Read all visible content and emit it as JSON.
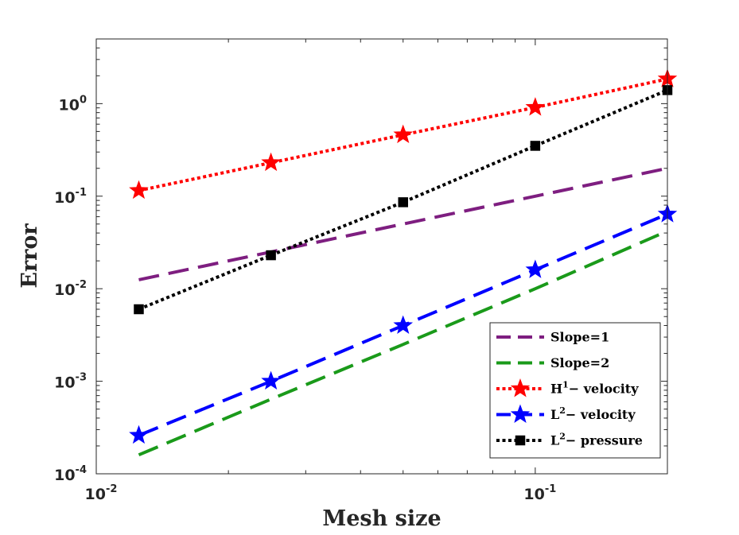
{
  "chart_data": {
    "type": "line",
    "scale": {
      "x": "log",
      "y": "log"
    },
    "xlabel": "Mesh size",
    "ylabel": "Error",
    "xlim": [
      0.01,
      0.2
    ],
    "ylim": [
      0.0001,
      5
    ],
    "x_ticks": [
      {
        "value": 0.01,
        "base": "10",
        "exp": "-2"
      },
      {
        "value": 0.1,
        "base": "10",
        "exp": "-1"
      }
    ],
    "y_ticks": [
      {
        "value": 0.0001,
        "base": "10",
        "exp": "-4"
      },
      {
        "value": 0.001,
        "base": "10",
        "exp": "-3"
      },
      {
        "value": 0.01,
        "base": "10",
        "exp": "-2"
      },
      {
        "value": 0.1,
        "base": "10",
        "exp": "-1"
      },
      {
        "value": 1,
        "base": "10",
        "exp": "0"
      }
    ],
    "legend_position": "bottom-right",
    "series": [
      {
        "name": "Slope=1",
        "legend_main": "Slope=1",
        "legend_sup": "",
        "legend_rest": "",
        "color": "#7e1e80",
        "line": "dashed",
        "marker": "none",
        "x": [
          0.0125,
          0.025,
          0.05,
          0.1,
          0.2
        ],
        "y": [
          0.0125,
          0.025,
          0.05,
          0.1,
          0.2
        ]
      },
      {
        "name": "Slope=2",
        "legend_main": "Slope=2",
        "legend_sup": "",
        "legend_rest": "",
        "color": "#1a9a1a",
        "line": "dashed",
        "marker": "none",
        "x": [
          0.0125,
          0.025,
          0.05,
          0.1,
          0.2
        ],
        "y": [
          0.00016,
          0.00064,
          0.0025,
          0.01,
          0.042
        ]
      },
      {
        "name": "H1- velocity",
        "legend_main": "H",
        "legend_sup": "1",
        "legend_rest": "− velocity",
        "color": "#ff0000",
        "line": "dotted",
        "marker": "star",
        "x": [
          0.0125,
          0.025,
          0.05,
          0.1,
          0.2
        ],
        "y": [
          0.115,
          0.23,
          0.46,
          0.91,
          1.85
        ]
      },
      {
        "name": "L2- velocity",
        "legend_main": "L",
        "legend_sup": "2",
        "legend_rest": "− velocity",
        "color": "#0000ff",
        "line": "dashed",
        "marker": "star",
        "x": [
          0.0125,
          0.025,
          0.05,
          0.1,
          0.2
        ],
        "y": [
          0.00026,
          0.001,
          0.004,
          0.016,
          0.064
        ]
      },
      {
        "name": "L2- pressure",
        "legend_main": "L",
        "legend_sup": "2",
        "legend_rest": "− pressure",
        "color": "#000000",
        "line": "dotted",
        "marker": "square",
        "x": [
          0.0125,
          0.025,
          0.05,
          0.1,
          0.2
        ],
        "y": [
          0.006,
          0.023,
          0.086,
          0.35,
          1.4
        ]
      }
    ]
  }
}
